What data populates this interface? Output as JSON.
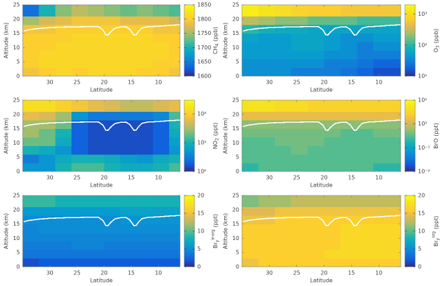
{
  "chart_data": [
    {
      "type": "heatmap",
      "xlabel": "Latitude",
      "ylabel": "Altitude (km)",
      "xlim": [
        35,
        6
      ],
      "xticks": [
        30,
        25,
        20,
        15,
        10
      ],
      "ylim": [
        0,
        25
      ],
      "yticks": [
        0,
        5,
        10,
        15,
        20,
        25
      ],
      "xbins": [
        35,
        32,
        29,
        26,
        23,
        20,
        17,
        14,
        11,
        8,
        6
      ],
      "ybins": [
        0,
        3,
        6,
        9,
        12,
        15,
        18,
        21,
        25
      ],
      "z": [
        [
          1790,
          1800,
          1810,
          1800,
          1810,
          1810,
          1810,
          1800,
          1800,
          1790
        ],
        [
          1800,
          1810,
          1810,
          1810,
          1810,
          1810,
          1810,
          1810,
          1800,
          1800
        ],
        [
          1800,
          1810,
          1810,
          1810,
          1810,
          1810,
          1810,
          1810,
          1810,
          1800
        ],
        [
          1800,
          1800,
          1810,
          1810,
          1810,
          1810,
          1810,
          1810,
          1810,
          1800
        ],
        [
          1800,
          1800,
          1800,
          1810,
          1810,
          1810,
          1810,
          1810,
          1800,
          1800
        ],
        [
          1790,
          1790,
          1800,
          1800,
          1800,
          1800,
          1800,
          1800,
          1790,
          1790
        ],
        [
          1750,
          1770,
          1780,
          1790,
          1790,
          1790,
          1780,
          1780,
          1780,
          1770
        ],
        [
          1640,
          1700,
          1740,
          1760,
          1750,
          1740,
          1730,
          1740,
          1730,
          1720
        ]
      ],
      "zscale": "linear",
      "zlim": [
        1600,
        1850
      ],
      "zticks": [
        1600,
        1650,
        1700,
        1750,
        1800,
        1850
      ],
      "colormap": "parula",
      "colorbar_label": {
        "main": "CH",
        "sub": "4",
        "unit": "(ppb)"
      },
      "line": {
        "color": "#ffffff",
        "x": [
          34.8,
          34,
          32,
          30,
          27,
          24,
          22,
          21,
          20.2,
          19.7,
          19.3,
          18.8,
          18,
          17,
          16,
          15.3,
          14.8,
          14.5,
          14.1,
          13.6,
          13,
          12,
          10,
          8,
          6
        ],
        "y": [
          15.8,
          16.2,
          16.7,
          17,
          17.2,
          17.3,
          17.4,
          17.3,
          16.2,
          14.5,
          14.4,
          15.5,
          16.8,
          17.2,
          17.3,
          16.5,
          15.2,
          14.4,
          14.5,
          15.8,
          16.9,
          17.3,
          17.5,
          17.8,
          18
        ]
      }
    },
    {
      "type": "heatmap",
      "xlabel": "Latitude",
      "ylabel": "Altitude (km)",
      "xlim": [
        35,
        6
      ],
      "xticks": [
        30,
        25,
        20,
        15,
        10
      ],
      "ylim": [
        0,
        25
      ],
      "yticks": [
        0,
        5,
        10,
        15,
        20,
        25
      ],
      "xbins": [
        35,
        32,
        29,
        26,
        23,
        20,
        17,
        14,
        11,
        8,
        6
      ],
      "ybins": [
        0,
        3,
        6,
        9,
        12,
        15,
        18,
        21,
        25
      ],
      "z": [
        [
          40,
          40,
          40,
          30,
          30,
          30,
          25,
          20,
          15,
          15
        ],
        [
          40,
          40,
          40,
          40,
          40,
          30,
          30,
          25,
          20,
          20
        ],
        [
          50,
          50,
          50,
          50,
          50,
          40,
          40,
          30,
          30,
          30
        ],
        [
          50,
          50,
          50,
          60,
          60,
          50,
          40,
          30,
          40,
          40
        ],
        [
          60,
          50,
          50,
          60,
          60,
          50,
          40,
          40,
          50,
          50
        ],
        [
          100,
          80,
          70,
          70,
          60,
          60,
          60,
          60,
          60,
          60
        ],
        [
          300,
          250,
          200,
          200,
          150,
          150,
          150,
          120,
          120,
          120
        ],
        [
          1500,
          1200,
          1000,
          800,
          700,
          700,
          600,
          600,
          600,
          600
        ]
      ],
      "zscale": "log",
      "zlim": [
        10,
        2000
      ],
      "zticks": [
        {
          "value": 10,
          "label": "10¹"
        },
        {
          "value": 100,
          "label": "10²"
        },
        {
          "value": 1000,
          "label": "10³"
        }
      ],
      "colormap": "parula",
      "colorbar_label": {
        "main": "O",
        "sub": "3",
        "unit": "(ppb)"
      },
      "line": {
        "color": "#ffffff",
        "x": [
          34.8,
          34,
          32,
          30,
          27,
          24,
          22,
          21,
          20.2,
          19.7,
          19.3,
          18.8,
          18,
          17,
          16,
          15.3,
          14.8,
          14.5,
          14.1,
          13.6,
          13,
          12,
          10,
          8,
          6
        ],
        "y": [
          15.8,
          16.2,
          16.7,
          17,
          17.2,
          17.3,
          17.4,
          17.3,
          16.2,
          14.5,
          14.4,
          15.5,
          16.8,
          17.2,
          17.3,
          16.5,
          15.2,
          14.4,
          14.5,
          15.8,
          16.9,
          17.3,
          17.5,
          17.8,
          18
        ]
      }
    },
    {
      "type": "heatmap",
      "xlabel": "Latitude",
      "ylabel": "Altitude (km)",
      "xlim": [
        35,
        6
      ],
      "xticks": [
        30,
        25,
        20,
        15,
        10
      ],
      "ylim": [
        0,
        25
      ],
      "yticks": [
        0,
        5,
        10,
        15,
        20,
        25
      ],
      "xbins": [
        35,
        32,
        29,
        26,
        23,
        20,
        17,
        14,
        11,
        8,
        6
      ],
      "ybins": [
        0,
        3,
        6,
        9,
        12,
        15,
        18,
        21,
        25
      ],
      "z": [
        [
          5,
          5,
          10,
          15,
          15,
          10,
          8,
          8,
          10,
          15
        ],
        [
          3,
          5,
          8,
          10,
          10,
          8,
          6,
          5,
          8,
          10
        ],
        [
          10,
          8,
          5,
          2,
          1.5,
          1.5,
          1.5,
          1.5,
          2,
          5
        ],
        [
          20,
          20,
          8,
          2,
          1.5,
          1.5,
          1.5,
          1.5,
          2,
          6
        ],
        [
          30,
          20,
          10,
          2,
          1.5,
          1.5,
          1.5,
          1.5,
          2,
          8
        ],
        [
          30,
          30,
          20,
          2,
          1.5,
          1.5,
          1.5,
          1.5,
          2,
          10
        ],
        [
          60,
          50,
          30,
          5,
          3,
          3,
          3,
          3,
          4,
          15
        ],
        [
          150,
          150,
          100,
          80,
          60,
          50,
          40,
          40,
          50,
          60
        ]
      ],
      "zscale": "log",
      "zlim": [
        1,
        300
      ],
      "zticks": [
        {
          "value": 1,
          "label": "10⁰"
        },
        {
          "value": 10,
          "label": "10¹"
        },
        {
          "value": 100,
          "label": "10²"
        }
      ],
      "colormap": "parula",
      "colorbar_label": {
        "main": "NO",
        "sub": "2",
        "unit": "(ppt)"
      },
      "line": {
        "color": "#ffffff",
        "x": [
          34.8,
          34,
          32,
          30,
          27,
          24,
          22,
          21,
          20.2,
          19.7,
          19.3,
          18.8,
          18,
          17,
          16,
          15.3,
          14.8,
          14.5,
          14.1,
          13.6,
          13,
          12,
          10,
          8,
          6
        ],
        "y": [
          15.8,
          16.2,
          16.7,
          17,
          17.2,
          17.3,
          17.4,
          17.3,
          16.2,
          14.5,
          14.4,
          15.5,
          16.8,
          17.2,
          17.3,
          16.5,
          15.2,
          14.4,
          14.5,
          15.8,
          16.9,
          17.3,
          17.5,
          17.8,
          18
        ]
      }
    },
    {
      "type": "heatmap",
      "xlabel": "Latitude",
      "ylabel": "Altitude (km)",
      "xlim": [
        35,
        6
      ],
      "xticks": [
        30,
        25,
        20,
        15,
        10
      ],
      "ylim": [
        0,
        25
      ],
      "yticks": [
        0,
        5,
        10,
        15,
        20,
        25
      ],
      "xbins": [
        35,
        32,
        29,
        26,
        23,
        20,
        17,
        14,
        11,
        8,
        6
      ],
      "ybins": [
        0,
        3,
        6,
        9,
        12,
        15,
        18,
        21,
        25
      ],
      "z": [
        [
          0.2,
          0.3,
          0.3,
          0.3,
          0.3,
          0.3,
          0.3,
          0.3,
          0.2,
          0.2
        ],
        [
          0.3,
          0.3,
          0.3,
          0.3,
          0.3,
          0.3,
          0.3,
          0.3,
          0.3,
          0.3
        ],
        [
          0.3,
          0.3,
          0.3,
          0.4,
          0.3,
          0.3,
          0.3,
          0.3,
          0.3,
          0.3
        ],
        [
          0.3,
          0.3,
          0.4,
          0.4,
          0.4,
          0.3,
          0.3,
          0.3,
          0.3,
          0.3
        ],
        [
          0.4,
          0.4,
          0.4,
          0.4,
          0.4,
          0.4,
          0.3,
          0.3,
          0.4,
          0.4
        ],
        [
          0.5,
          0.5,
          0.5,
          0.5,
          0.5,
          0.5,
          0.5,
          0.5,
          0.5,
          0.5
        ],
        [
          1.5,
          1.5,
          1.5,
          1.5,
          1.5,
          1.5,
          1.5,
          1.5,
          1.5,
          1.5
        ],
        [
          5,
          5,
          4,
          4,
          3,
          3,
          3,
          3,
          3,
          3
        ]
      ],
      "zscale": "log",
      "zlim": [
        0.01,
        10
      ],
      "zticks": [
        {
          "value": 0.01,
          "label": "10⁻²"
        },
        {
          "value": 0.1,
          "label": "10⁻¹"
        },
        {
          "value": 1,
          "label": "10⁰"
        },
        {
          "value": 10,
          "label": "10¹"
        }
      ],
      "colormap": "parula",
      "colorbar_label": {
        "main": "BrO",
        "unit": "(ppt)"
      },
      "line": {
        "color": "#ffffff",
        "x": [
          34.8,
          34,
          32,
          30,
          27,
          24,
          22,
          21,
          20.2,
          19.7,
          19.3,
          18.8,
          18,
          17,
          16,
          15.3,
          14.8,
          14.5,
          14.1,
          13.6,
          13,
          12,
          10,
          8,
          6
        ],
        "y": [
          15.8,
          16.2,
          16.7,
          17,
          17.2,
          17.3,
          17.4,
          17.3,
          16.2,
          14.5,
          14.4,
          15.5,
          16.8,
          17.2,
          17.3,
          16.5,
          15.2,
          14.4,
          14.5,
          15.8,
          16.9,
          17.3,
          17.5,
          17.8,
          18
        ]
      }
    },
    {
      "type": "heatmap",
      "xlabel": "Latitude",
      "ylabel": "Altitude (km)",
      "xlim": [
        35,
        6
      ],
      "xticks": [
        30,
        25,
        20,
        15,
        10
      ],
      "ylim": [
        0,
        25
      ],
      "yticks": [
        0,
        5,
        10,
        15,
        20,
        25
      ],
      "xbins": [
        35,
        32,
        29,
        26,
        23,
        20,
        17,
        14,
        11,
        8,
        6
      ],
      "ybins": [
        0,
        3,
        6,
        9,
        12,
        15,
        18,
        21,
        25
      ],
      "z": [
        [
          1.5,
          2,
          2,
          2,
          2,
          2,
          2,
          2,
          2,
          2
        ],
        [
          3.5,
          3.5,
          3.5,
          3.5,
          3.5,
          3.5,
          3.5,
          3.5,
          3.5,
          3.5
        ],
        [
          4,
          4,
          4,
          4.5,
          4.5,
          4,
          4,
          4,
          4,
          4
        ],
        [
          4.5,
          4.5,
          4.5,
          4.5,
          4.5,
          4.5,
          4.5,
          4.5,
          4.5,
          4.5
        ],
        [
          4.5,
          5,
          5,
          5,
          5,
          5,
          5,
          5,
          5,
          5
        ],
        [
          5,
          5,
          5,
          5,
          5,
          5,
          5.5,
          5.5,
          5.5,
          5.5
        ],
        [
          6,
          6,
          6,
          6,
          6,
          6,
          6.5,
          6.5,
          6.5,
          6.5
        ],
        [
          9,
          9,
          8,
          8,
          8,
          8,
          8,
          8,
          8,
          8
        ]
      ],
      "zscale": "linear",
      "zlim": [
        0,
        20
      ],
      "zticks": [
        0,
        5,
        10,
        15,
        20
      ],
      "colormap": "parula",
      "colorbar_label": {
        "main": "Br",
        "sub": "y",
        "sup": "inorg",
        "unit": "(ppt)"
      },
      "line": {
        "color": "#ffffff",
        "x": [
          34.8,
          34,
          32,
          30,
          27,
          24,
          22,
          21,
          20.2,
          19.7,
          19.3,
          18.8,
          18,
          17,
          16,
          15.3,
          14.8,
          14.5,
          14.1,
          13.6,
          13,
          12,
          10,
          8,
          6
        ],
        "y": [
          15.8,
          16.2,
          16.7,
          17,
          17.2,
          17.3,
          17.4,
          17.3,
          16.2,
          14.5,
          14.4,
          15.5,
          16.8,
          17.2,
          17.3,
          16.5,
          15.2,
          14.4,
          14.5,
          15.8,
          16.9,
          17.3,
          17.5,
          17.8,
          18
        ]
      }
    },
    {
      "type": "heatmap",
      "xlabel": "Latitude",
      "ylabel": "Altitude (km)",
      "xlim": [
        35,
        6
      ],
      "xticks": [
        30,
        25,
        20,
        15,
        10
      ],
      "ylim": [
        0,
        25
      ],
      "yticks": [
        0,
        5,
        10,
        15,
        20,
        25
      ],
      "xbins": [
        35,
        32,
        29,
        26,
        23,
        20,
        17,
        14,
        11,
        8,
        6
      ],
      "ybins": [
        0,
        3,
        6,
        9,
        12,
        15,
        18,
        21,
        25
      ],
      "z": [
        [
          15,
          16,
          16,
          16,
          16,
          16,
          16,
          16,
          16,
          16
        ],
        [
          16,
          16,
          16,
          16,
          16,
          17,
          17,
          17,
          17,
          17
        ],
        [
          16,
          16,
          16,
          16,
          16,
          16,
          17,
          17,
          17,
          17
        ],
        [
          16,
          16,
          16,
          16,
          16,
          16,
          17,
          17,
          17,
          17
        ],
        [
          16,
          16,
          16,
          16,
          16,
          16,
          17,
          17,
          17,
          17
        ],
        [
          15,
          15,
          16,
          16,
          16,
          16,
          16,
          16,
          16,
          16
        ],
        [
          14,
          14,
          15,
          15,
          15,
          15,
          15,
          15,
          15,
          15
        ],
        [
          11,
          12,
          12,
          13,
          13,
          13,
          13,
          13,
          13,
          13
        ]
      ],
      "zscale": "linear",
      "zlim": [
        0,
        20
      ],
      "zticks": [
        0,
        5,
        10,
        15,
        20
      ],
      "colormap": "parula",
      "colorbar_label": {
        "main": "Br",
        "sub": "y",
        "sup": "org",
        "unit": "(ppt)"
      },
      "line": {
        "color": "#ffffff",
        "x": [
          34.8,
          34,
          32,
          30,
          27,
          24,
          22,
          21,
          20.2,
          19.7,
          19.3,
          18.8,
          18,
          17,
          16,
          15.3,
          14.8,
          14.5,
          14.1,
          13.6,
          13,
          12,
          10,
          8,
          6
        ],
        "y": [
          15.8,
          16.2,
          16.7,
          17,
          17.2,
          17.3,
          17.4,
          17.3,
          16.2,
          14.5,
          14.4,
          15.5,
          16.8,
          17.2,
          17.3,
          16.5,
          15.2,
          14.4,
          14.5,
          15.8,
          16.9,
          17.3,
          17.5,
          17.8,
          18
        ]
      }
    }
  ]
}
